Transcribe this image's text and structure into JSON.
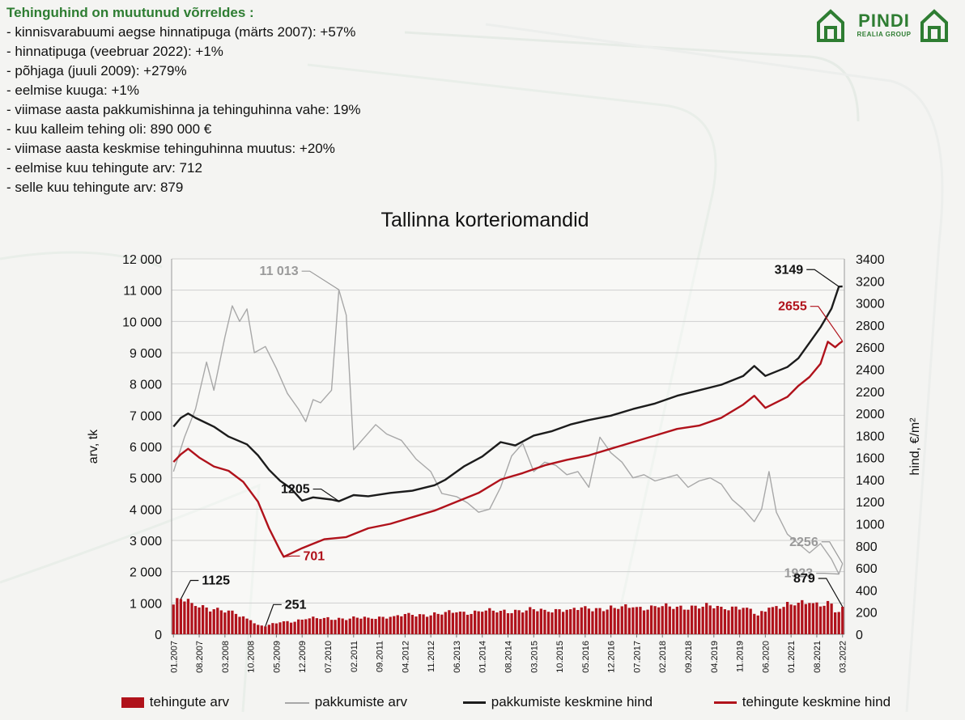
{
  "summary": {
    "title": "Tehinguhind on muutunud võrreldes :",
    "items": [
      "- kinnisvarabuumi aegse hinnatipuga (märts 2007): +57%",
      "- hinnatipuga (veebruar 2022): +1%",
      "- põhjaga (juuli 2009): +279%",
      "- eelmise kuuga: +1%",
      "- viimase aasta pakkumishinna ja tehinguhinna vahe: 19%",
      "- kuu kalleim tehing oli: 890 000 €",
      "- viimase aasta keskmise tehinguhinna muutus: +20%",
      "- eelmise kuu tehingute arv: 712",
      "- selle kuu tehingute arv: 879"
    ]
  },
  "logo": {
    "name": "PINDI",
    "subtitle": "REALIA GROUP",
    "icon": "house-icon",
    "color": "#2e7d32"
  },
  "chart_data": {
    "type": "bar",
    "title": "Tallinna korteriomandid",
    "ylabel": "arv, tk",
    "y2label": "hind, €/m²",
    "ylim": [
      0,
      12000
    ],
    "y2lim": [
      0,
      3400
    ],
    "y_ticks": [
      "0",
      "1 000",
      "2 000",
      "3 000",
      "4 000",
      "5 000",
      "6 000",
      "7 000",
      "8 000",
      "9 000",
      "10 000",
      "11 000",
      "12 000"
    ],
    "y2_ticks": [
      "0",
      "200",
      "400",
      "600",
      "800",
      "1000",
      "1200",
      "1400",
      "1600",
      "1800",
      "2000",
      "2200",
      "2400",
      "2600",
      "2800",
      "3000",
      "3200",
      "3400"
    ],
    "x_range": [
      "2007-01",
      "2022-03"
    ],
    "x_ticks": [
      "01.2007",
      "08.2007",
      "03.2008",
      "10.2008",
      "05.2009",
      "12.2009",
      "07.2010",
      "02.2011",
      "09.2011",
      "04.2012",
      "11.2012",
      "06.2013",
      "01.2014",
      "08.2014",
      "03.2015",
      "10.2015",
      "05.2016",
      "12.2016",
      "07.2017",
      "02.2018",
      "09.2018",
      "04.2019",
      "11.2019",
      "06.2020",
      "01.2021",
      "08.2021",
      "03.2022"
    ],
    "grid": true,
    "legend_position": "bottom",
    "series": [
      {
        "name": "tehingute arv",
        "type": "bar",
        "axis": "left",
        "color": "#b0121b",
        "anchors": [
          [
            "2007-01",
            950
          ],
          [
            "2007-03",
            1125
          ],
          [
            "2007-06",
            1000
          ],
          [
            "2007-12",
            800
          ],
          [
            "2008-06",
            650
          ],
          [
            "2008-10",
            450
          ],
          [
            "2008-12",
            300
          ],
          [
            "2009-02",
            251
          ],
          [
            "2009-06",
            380
          ],
          [
            "2010-01",
            480
          ],
          [
            "2010-06",
            520
          ],
          [
            "2011-01",
            500
          ],
          [
            "2011-06",
            530
          ],
          [
            "2012-01",
            580
          ],
          [
            "2012-06",
            620
          ],
          [
            "2013-01",
            650
          ],
          [
            "2013-06",
            700
          ],
          [
            "2014-01",
            720
          ],
          [
            "2014-06",
            750
          ],
          [
            "2015-01",
            760
          ],
          [
            "2015-06",
            780
          ],
          [
            "2016-01",
            800
          ],
          [
            "2016-06",
            820
          ],
          [
            "2017-01",
            840
          ],
          [
            "2017-06",
            860
          ],
          [
            "2018-01",
            860
          ],
          [
            "2018-06",
            880
          ],
          [
            "2019-01",
            880
          ],
          [
            "2019-06",
            880
          ],
          [
            "2020-01",
            850
          ],
          [
            "2020-04",
            600
          ],
          [
            "2020-07",
            850
          ],
          [
            "2021-01",
            950
          ],
          [
            "2021-06",
            1000
          ],
          [
            "2021-12",
            980
          ],
          [
            "2022-01",
            700
          ],
          [
            "2022-02",
            712
          ],
          [
            "2022-03",
            879
          ]
        ]
      },
      {
        "name": "pakkumiste arv",
        "type": "line",
        "axis": "left",
        "color": "#a8a8a8",
        "points": [
          [
            "2007-01",
            5200
          ],
          [
            "2007-04",
            6300
          ],
          [
            "2007-07",
            7200
          ],
          [
            "2007-10",
            8700
          ],
          [
            "2007-12",
            7800
          ],
          [
            "2008-03",
            9500
          ],
          [
            "2008-05",
            10500
          ],
          [
            "2008-07",
            10000
          ],
          [
            "2008-09",
            10400
          ],
          [
            "2008-11",
            9000
          ],
          [
            "2009-02",
            9200
          ],
          [
            "2009-05",
            8500
          ],
          [
            "2009-08",
            7700
          ],
          [
            "2009-11",
            7200
          ],
          [
            "2010-01",
            6800
          ],
          [
            "2010-03",
            7500
          ],
          [
            "2010-05",
            7400
          ],
          [
            "2010-08",
            7800
          ],
          [
            "2010-10",
            11013
          ],
          [
            "2010-12",
            10200
          ],
          [
            "2011-02",
            5900
          ],
          [
            "2011-05",
            6300
          ],
          [
            "2011-08",
            6700
          ],
          [
            "2011-11",
            6400
          ],
          [
            "2012-03",
            6200
          ],
          [
            "2012-07",
            5600
          ],
          [
            "2012-11",
            5200
          ],
          [
            "2013-02",
            4500
          ],
          [
            "2013-06",
            4400
          ],
          [
            "2013-09",
            4200
          ],
          [
            "2013-12",
            3900
          ],
          [
            "2014-03",
            4000
          ],
          [
            "2014-06",
            4700
          ],
          [
            "2014-09",
            5700
          ],
          [
            "2014-12",
            6100
          ],
          [
            "2015-03",
            5200
          ],
          [
            "2015-06",
            5500
          ],
          [
            "2015-09",
            5400
          ],
          [
            "2015-12",
            5100
          ],
          [
            "2016-03",
            5200
          ],
          [
            "2016-06",
            4700
          ],
          [
            "2016-09",
            6300
          ],
          [
            "2016-12",
            5800
          ],
          [
            "2017-03",
            5500
          ],
          [
            "2017-06",
            5000
          ],
          [
            "2017-09",
            5100
          ],
          [
            "2017-12",
            4900
          ],
          [
            "2018-03",
            5000
          ],
          [
            "2018-06",
            5100
          ],
          [
            "2018-09",
            4700
          ],
          [
            "2018-12",
            4900
          ],
          [
            "2019-03",
            5000
          ],
          [
            "2019-06",
            4800
          ],
          [
            "2019-09",
            4300
          ],
          [
            "2019-12",
            4000
          ],
          [
            "2020-03",
            3600
          ],
          [
            "2020-05",
            4000
          ],
          [
            "2020-07",
            5200
          ],
          [
            "2020-09",
            3900
          ],
          [
            "2020-12",
            3200
          ],
          [
            "2021-03",
            2900
          ],
          [
            "2021-06",
            2600
          ],
          [
            "2021-09",
            2900
          ],
          [
            "2021-12",
            2400
          ],
          [
            "2022-02",
            1923
          ],
          [
            "2022-03",
            2256
          ]
        ]
      },
      {
        "name": "pakkumiste keskmine hind",
        "type": "line",
        "axis": "right",
        "color": "#1c1c1c",
        "points": [
          [
            "2007-01",
            1880
          ],
          [
            "2007-03",
            1960
          ],
          [
            "2007-05",
            2000
          ],
          [
            "2007-07",
            1960
          ],
          [
            "2007-12",
            1880
          ],
          [
            "2008-04",
            1790
          ],
          [
            "2008-09",
            1720
          ],
          [
            "2008-12",
            1620
          ],
          [
            "2009-03",
            1490
          ],
          [
            "2009-06",
            1390
          ],
          [
            "2009-09",
            1320
          ],
          [
            "2009-12",
            1210
          ],
          [
            "2010-03",
            1240
          ],
          [
            "2010-08",
            1220
          ],
          [
            "2010-10",
            1205
          ],
          [
            "2011-02",
            1260
          ],
          [
            "2011-06",
            1250
          ],
          [
            "2011-12",
            1280
          ],
          [
            "2012-06",
            1300
          ],
          [
            "2012-12",
            1350
          ],
          [
            "2013-03",
            1400
          ],
          [
            "2013-08",
            1520
          ],
          [
            "2014-01",
            1610
          ],
          [
            "2014-06",
            1740
          ],
          [
            "2014-10",
            1710
          ],
          [
            "2015-03",
            1800
          ],
          [
            "2015-08",
            1840
          ],
          [
            "2016-01",
            1900
          ],
          [
            "2016-06",
            1940
          ],
          [
            "2016-12",
            1980
          ],
          [
            "2017-06",
            2040
          ],
          [
            "2017-12",
            2090
          ],
          [
            "2018-06",
            2160
          ],
          [
            "2018-12",
            2210
          ],
          [
            "2019-06",
            2260
          ],
          [
            "2019-12",
            2340
          ],
          [
            "2020-03",
            2430
          ],
          [
            "2020-06",
            2340
          ],
          [
            "2020-12",
            2420
          ],
          [
            "2021-03",
            2500
          ],
          [
            "2021-06",
            2640
          ],
          [
            "2021-09",
            2780
          ],
          [
            "2021-12",
            2950
          ],
          [
            "2022-02",
            3149
          ],
          [
            "2022-03",
            3150
          ]
        ]
      },
      {
        "name": "tehingute keskmine hind",
        "type": "line",
        "axis": "right",
        "color": "#b0121b",
        "points": [
          [
            "2007-01",
            1560
          ],
          [
            "2007-03",
            1630
          ],
          [
            "2007-05",
            1680
          ],
          [
            "2007-08",
            1600
          ],
          [
            "2007-12",
            1520
          ],
          [
            "2008-04",
            1480
          ],
          [
            "2008-08",
            1380
          ],
          [
            "2008-12",
            1200
          ],
          [
            "2009-03",
            960
          ],
          [
            "2009-06",
            760
          ],
          [
            "2009-07",
            701
          ],
          [
            "2009-12",
            780
          ],
          [
            "2010-06",
            860
          ],
          [
            "2010-12",
            880
          ],
          [
            "2011-06",
            960
          ],
          [
            "2011-12",
            1000
          ],
          [
            "2012-06",
            1060
          ],
          [
            "2012-12",
            1120
          ],
          [
            "2013-06",
            1200
          ],
          [
            "2013-12",
            1280
          ],
          [
            "2014-06",
            1400
          ],
          [
            "2014-12",
            1460
          ],
          [
            "2015-06",
            1530
          ],
          [
            "2015-12",
            1580
          ],
          [
            "2016-06",
            1620
          ],
          [
            "2016-12",
            1680
          ],
          [
            "2017-06",
            1740
          ],
          [
            "2017-12",
            1800
          ],
          [
            "2018-06",
            1860
          ],
          [
            "2018-12",
            1890
          ],
          [
            "2019-06",
            1960
          ],
          [
            "2019-12",
            2080
          ],
          [
            "2020-03",
            2160
          ],
          [
            "2020-06",
            2050
          ],
          [
            "2020-12",
            2150
          ],
          [
            "2021-03",
            2250
          ],
          [
            "2021-06",
            2330
          ],
          [
            "2021-09",
            2450
          ],
          [
            "2021-11",
            2650
          ],
          [
            "2022-01",
            2600
          ],
          [
            "2022-02",
            2630
          ],
          [
            "2022-03",
            2655
          ]
        ]
      }
    ],
    "annotations": [
      {
        "text": "11 013",
        "series": "pakkumiste arv",
        "x": "2010-10",
        "value": 11013,
        "color": "#9a9a9a",
        "side": "left"
      },
      {
        "text": "2256",
        "series": "pakkumiste arv",
        "x": "2022-03",
        "value": 2256,
        "color": "#9a9a9a",
        "side": "left"
      },
      {
        "text": "1923",
        "series": "pakkumiste arv",
        "x": "2022-02",
        "value": 1923,
        "color": "#9a9a9a",
        "side": "left"
      },
      {
        "text": "3149",
        "series": "pakkumiste keskmine hind",
        "x": "2022-02",
        "value": 3149,
        "color": "#111111",
        "side": "left"
      },
      {
        "text": "1205",
        "series": "pakkumiste keskmine hind",
        "x": "2010-10",
        "value": 1205,
        "color": "#111111",
        "side": "left"
      },
      {
        "text": "2655",
        "series": "tehingute keskmine hind",
        "x": "2022-03",
        "value": 2655,
        "color": "#b0121b",
        "side": "left"
      },
      {
        "text": "701",
        "series": "tehingute keskmine hind",
        "x": "2009-07",
        "value": 701,
        "color": "#b0121b",
        "side": "right"
      },
      {
        "text": "1125",
        "series": "tehingute arv",
        "x": "2007-03",
        "value": 1125,
        "color": "#111111",
        "side": "right"
      },
      {
        "text": "251",
        "series": "tehingute arv",
        "x": "2009-02",
        "value": 251,
        "color": "#111111",
        "side": "right"
      },
      {
        "text": "879",
        "series": "tehingute arv",
        "x": "2022-03",
        "value": 879,
        "color": "#111111",
        "side": "left"
      }
    ]
  }
}
